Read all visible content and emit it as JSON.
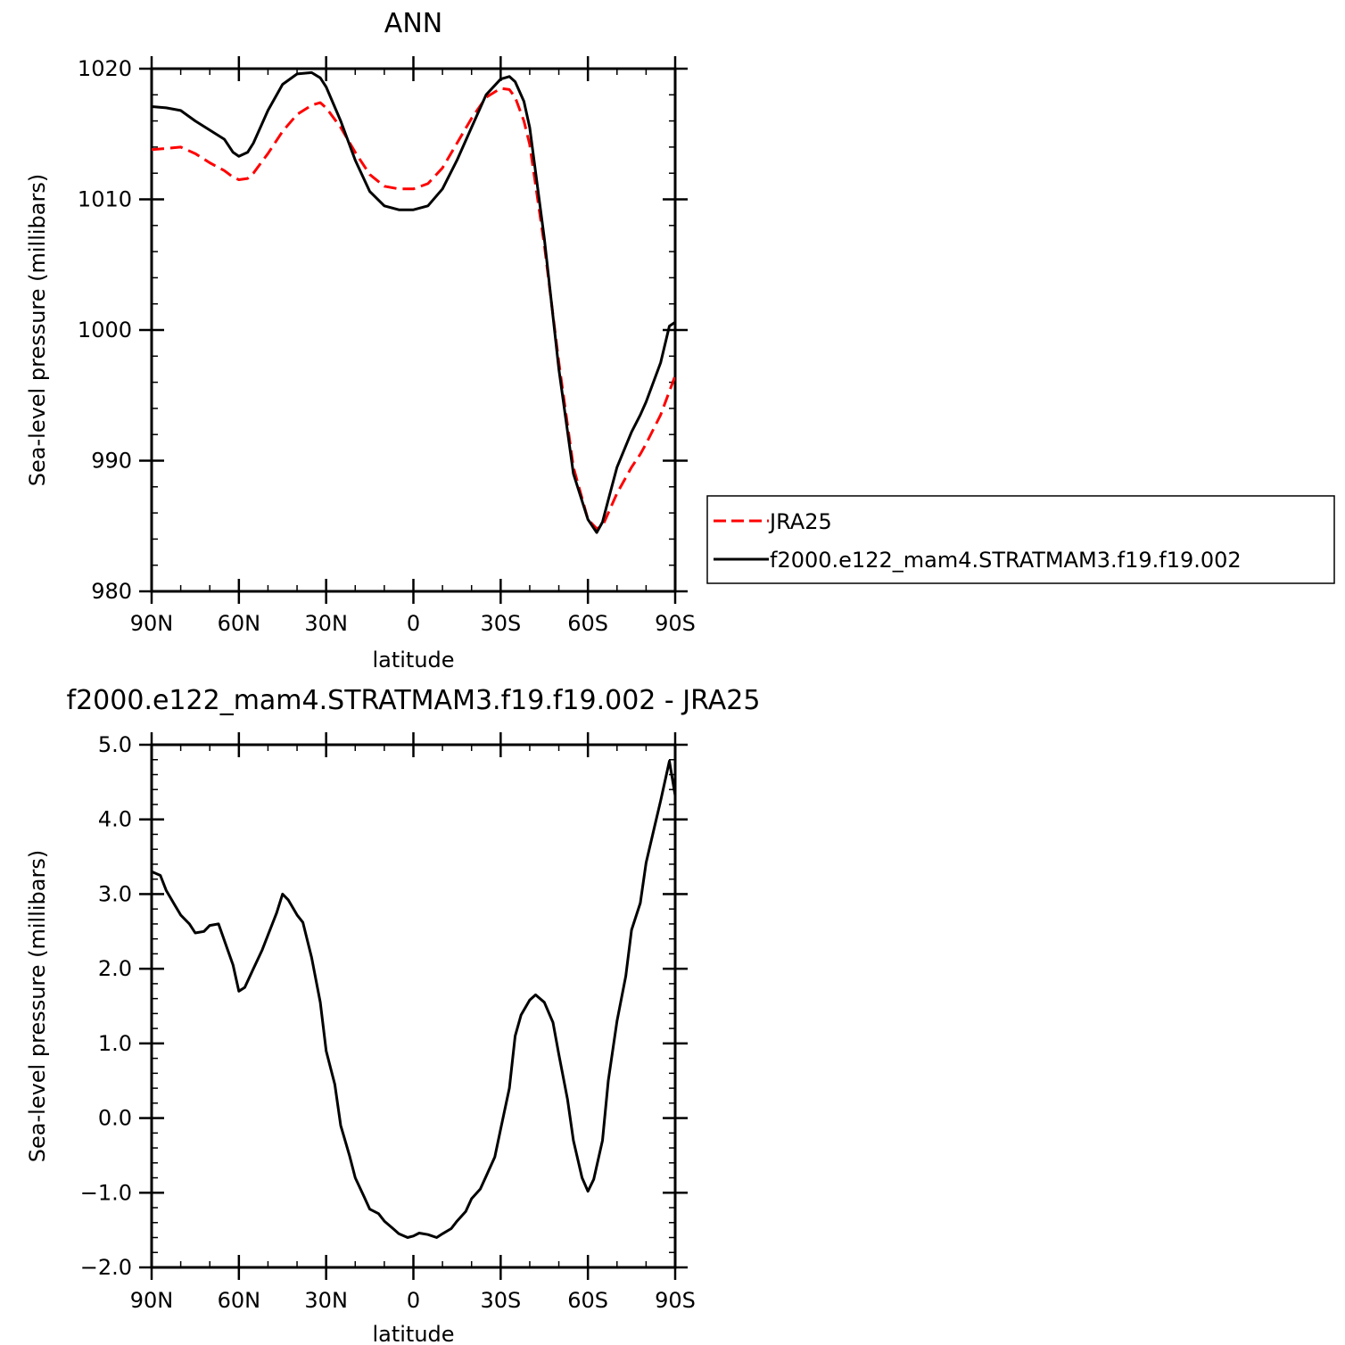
{
  "chart_data": [
    {
      "type": "line",
      "title": "ANN",
      "xlabel": "latitude",
      "ylabel": "Sea-level pressure (millibars)",
      "xlim": [
        90,
        -90
      ],
      "ylim": [
        980,
        1020
      ],
      "x_ticks": [
        90,
        60,
        30,
        0,
        -30,
        -60,
        -90
      ],
      "x_tick_labels": [
        "90N",
        "60N",
        "30N",
        "0",
        "30S",
        "60S",
        "90S"
      ],
      "y_ticks": [
        980,
        990,
        1000,
        1010,
        1020
      ],
      "y_tick_labels": [
        "980",
        "990",
        "1000",
        "1010",
        "1020"
      ],
      "legend": "right",
      "series": [
        {
          "name": "JRA25",
          "color": "#ff0000",
          "dash": true,
          "x": [
            90,
            85,
            80,
            75,
            70,
            65,
            62,
            60,
            57,
            55,
            50,
            45,
            40,
            35,
            32,
            30,
            25,
            20,
            15,
            10,
            5,
            0,
            -5,
            -10,
            -15,
            -20,
            -25,
            -30,
            -33,
            -35,
            -38,
            -40,
            -45,
            -50,
            -55,
            -60,
            -63,
            -65,
            -67,
            -70,
            -75,
            -78,
            -80,
            -85,
            -90
          ],
          "y": [
            1013.8,
            1013.9,
            1014.0,
            1013.5,
            1012.8,
            1012.2,
            1011.7,
            1011.5,
            1011.6,
            1012.0,
            1013.5,
            1015.2,
            1016.5,
            1017.2,
            1017.4,
            1017.0,
            1015.5,
            1013.6,
            1011.9,
            1011.0,
            1010.8,
            1010.8,
            1011.2,
            1012.4,
            1014.3,
            1016.2,
            1017.8,
            1018.5,
            1018.4,
            1017.8,
            1016.0,
            1014.2,
            1006.5,
            997.5,
            989.5,
            985.5,
            984.8,
            985.0,
            986.0,
            987.5,
            989.5,
            990.5,
            991.3,
            993.5,
            996.5
          ]
        },
        {
          "name": "f2000.e122_mam4.STRATMAM3.f19.f19.002",
          "color": "#000000",
          "dash": false,
          "x": [
            90,
            85,
            80,
            75,
            70,
            65,
            62,
            60,
            57,
            55,
            50,
            45,
            40,
            35,
            32,
            30,
            25,
            20,
            15,
            10,
            5,
            0,
            -5,
            -10,
            -15,
            -20,
            -25,
            -30,
            -33,
            -35,
            -38,
            -40,
            -45,
            -50,
            -55,
            -60,
            -63,
            -65,
            -67,
            -70,
            -75,
            -78,
            -80,
            -85,
            -88,
            -90
          ],
          "y": [
            1017.1,
            1017.0,
            1016.8,
            1016.0,
            1015.3,
            1014.6,
            1013.6,
            1013.3,
            1013.6,
            1014.3,
            1016.8,
            1018.8,
            1019.6,
            1019.7,
            1019.3,
            1018.6,
            1016.0,
            1013.0,
            1010.6,
            1009.5,
            1009.2,
            1009.2,
            1009.5,
            1010.8,
            1013.0,
            1015.5,
            1018.0,
            1019.2,
            1019.4,
            1019.0,
            1017.5,
            1015.5,
            1007.0,
            997.0,
            989.0,
            985.5,
            984.5,
            985.3,
            987.0,
            989.5,
            992.2,
            993.5,
            994.5,
            997.5,
            1000.3,
            1000.6
          ]
        }
      ]
    },
    {
      "type": "line",
      "title": "f2000.e122_mam4.STRATMAM3.f19.f19.002 - JRA25",
      "xlabel": "latitude",
      "ylabel": "Sea-level pressure (millibars)",
      "xlim": [
        90,
        -90
      ],
      "ylim": [
        -2.0,
        5.0
      ],
      "x_ticks": [
        90,
        60,
        30,
        0,
        -30,
        -60,
        -90
      ],
      "x_tick_labels": [
        "90N",
        "60N",
        "30N",
        "0",
        "30S",
        "60S",
        "90S"
      ],
      "y_ticks": [
        -2,
        -1,
        0,
        1,
        2,
        3,
        4,
        5
      ],
      "y_tick_labels": [
        "−2.0",
        "−1.0",
        "0.0",
        "1.0",
        "2.0",
        "3.0",
        "4.0",
        "5.0"
      ],
      "series": [
        {
          "color": "#000000",
          "x": [
            90,
            87,
            85,
            82,
            80,
            77,
            75,
            72,
            70,
            67,
            65,
            62,
            60,
            58,
            55,
            52,
            50,
            47,
            45,
            43,
            40,
            38,
            35,
            32,
            30,
            27,
            25,
            22,
            20,
            17,
            15,
            12,
            10,
            7,
            5,
            2,
            0,
            -2,
            -5,
            -8,
            -10,
            -13,
            -15,
            -18,
            -20,
            -23,
            -25,
            -28,
            -30,
            -33,
            -35,
            -37,
            -40,
            -42,
            -45,
            -48,
            -50,
            -53,
            -55,
            -58,
            -60,
            -62,
            -65,
            -67,
            -70,
            -73,
            -75,
            -78,
            -80,
            -83,
            -85,
            -88,
            -90
          ],
          "y": [
            3.3,
            3.25,
            3.05,
            2.85,
            2.72,
            2.6,
            2.48,
            2.5,
            2.58,
            2.6,
            2.38,
            2.05,
            1.7,
            1.75,
            2.0,
            2.25,
            2.45,
            2.75,
            3.0,
            2.92,
            2.72,
            2.62,
            2.15,
            1.55,
            0.9,
            0.45,
            -0.1,
            -0.5,
            -0.8,
            -1.05,
            -1.22,
            -1.28,
            -1.38,
            -1.48,
            -1.55,
            -1.6,
            -1.58,
            -1.54,
            -1.56,
            -1.6,
            -1.55,
            -1.48,
            -1.38,
            -1.25,
            -1.08,
            -0.95,
            -0.78,
            -0.52,
            -0.15,
            0.4,
            1.1,
            1.38,
            1.58,
            1.65,
            1.55,
            1.28,
            0.85,
            0.25,
            -0.3,
            -0.8,
            -0.98,
            -0.82,
            -0.3,
            0.5,
            1.3,
            1.9,
            2.52,
            2.88,
            3.42,
            3.92,
            4.25,
            4.78,
            4.32
          ]
        }
      ]
    }
  ]
}
